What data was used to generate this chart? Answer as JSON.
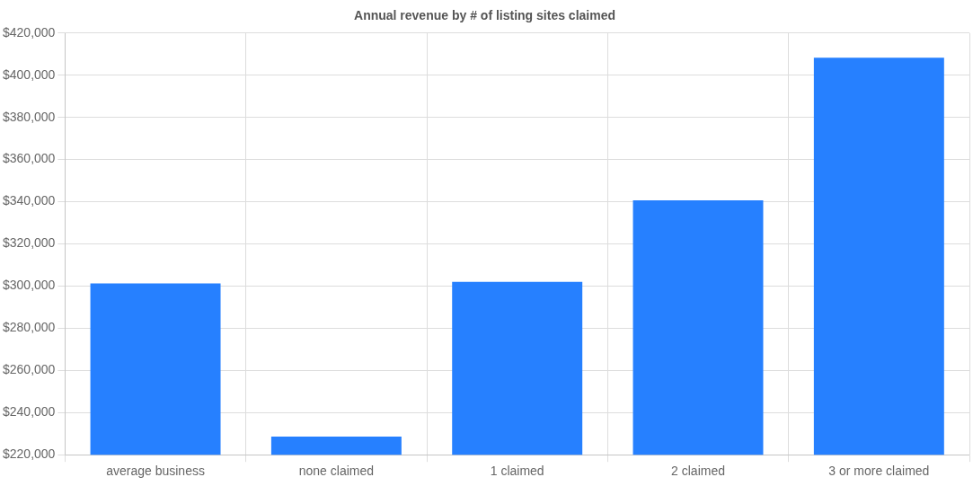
{
  "chart_data": {
    "type": "bar",
    "title": "Annual revenue by # of listing sites claimed",
    "categories": [
      "average business",
      "none claimed",
      "1 claimed",
      "2 claimed",
      "3 or more claimed"
    ],
    "values": [
      301200,
      228600,
      302000,
      340700,
      408300
    ],
    "color": "#2680ff",
    "ylim": [
      220000,
      420000
    ],
    "yticks": [
      {
        "value": 220000,
        "label": "$220,000"
      },
      {
        "value": 240000,
        "label": "$240,000"
      },
      {
        "value": 260000,
        "label": "$260,000"
      },
      {
        "value": 280000,
        "label": "$280,000"
      },
      {
        "value": 300000,
        "label": "$300,000"
      },
      {
        "value": 320000,
        "label": "$320,000"
      },
      {
        "value": 340000,
        "label": "$340,000"
      },
      {
        "value": 360000,
        "label": "$360,000"
      },
      {
        "value": 380000,
        "label": "$380,000"
      },
      {
        "value": 400000,
        "label": "$400,000"
      },
      {
        "value": 420000,
        "label": "$420,000"
      }
    ],
    "grid": true
  }
}
